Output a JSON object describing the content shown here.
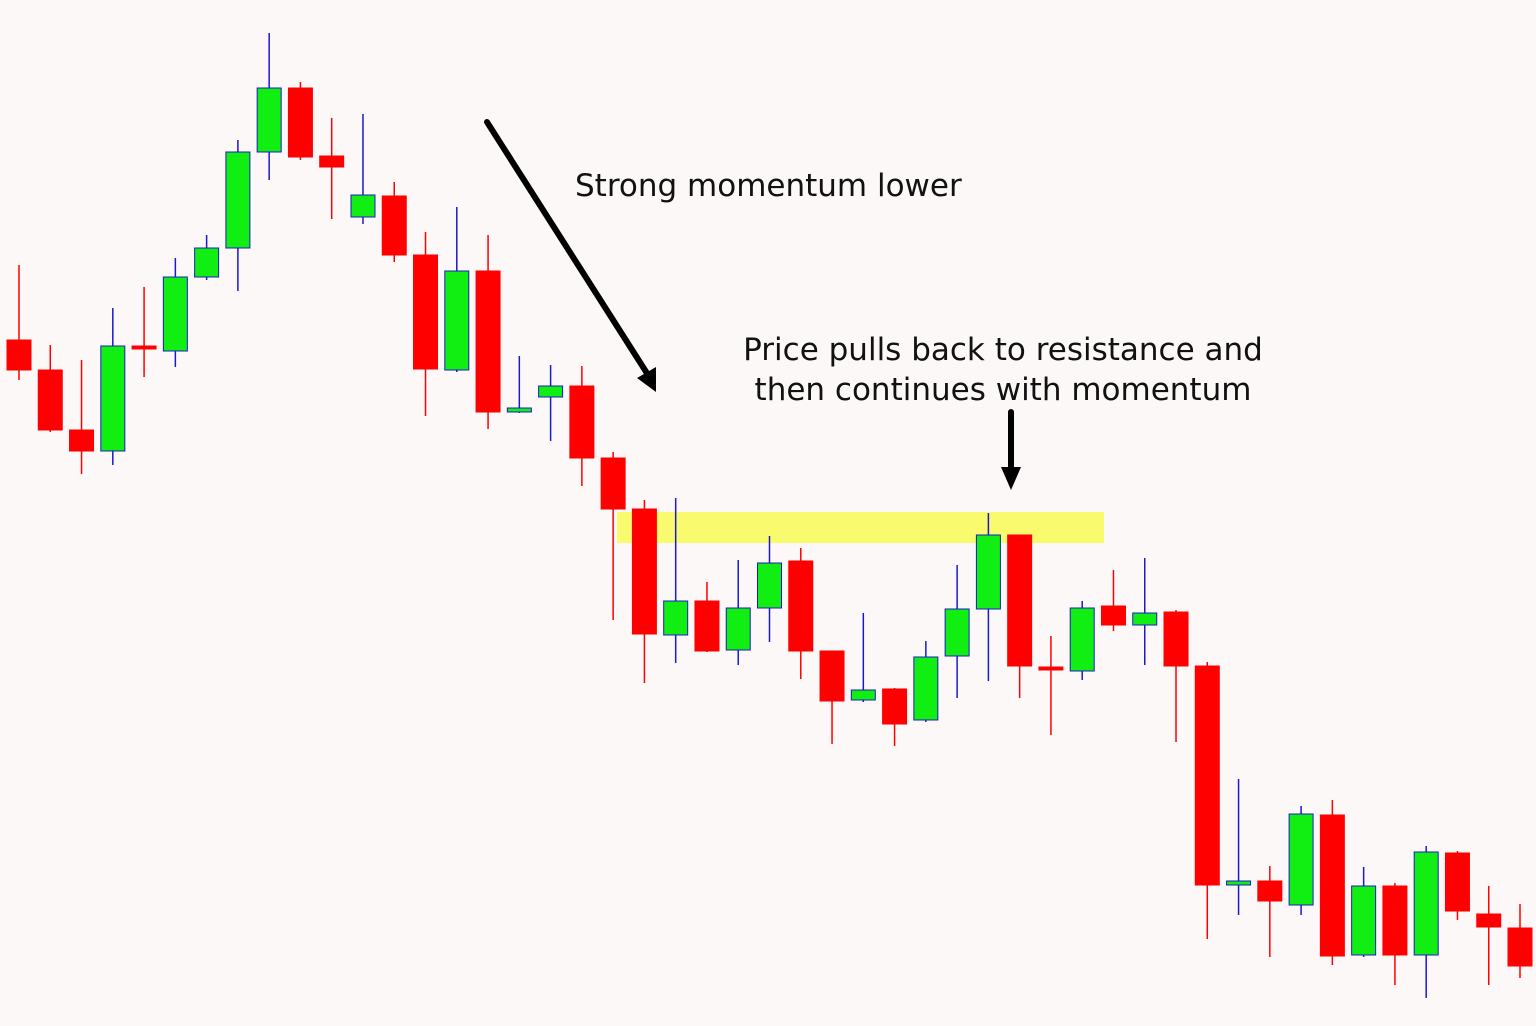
{
  "chart_data": {
    "type": "candlestick",
    "ylim": [
      0,
      1026
    ],
    "up_color": "#11ee11",
    "up_edge_color": "#1a1acc",
    "down_color": "#ff0000",
    "zone": {
      "low": 483,
      "high": 514,
      "color": "#fafa6e"
    },
    "annotations": [
      "Strong momentum lower",
      "Price pulls back to resistance and",
      "then continues with momentum"
    ],
    "open": [
      686,
      656,
      596,
      575,
      680,
      675,
      749,
      778,
      874,
      938,
      870,
      809,
      830,
      771,
      656,
      755,
      614,
      629,
      640,
      568,
      517,
      391,
      425,
      376,
      418,
      465,
      375,
      326,
      337,
      306,
      370,
      417,
      491,
      359,
      355,
      420,
      401,
      414,
      360,
      141,
      145,
      121,
      211,
      71,
      140,
      71,
      173,
      112,
      98
    ],
    "high": [
      761,
      681,
      666,
      718,
      739,
      768,
      791,
      886,
      993,
      944,
      908,
      912,
      844,
      794,
      819,
      791,
      670,
      661,
      660,
      574,
      526,
      528,
      444,
      466,
      490,
      478,
      375,
      413,
      338,
      385,
      461,
      513,
      491,
      390,
      425,
      456,
      468,
      416,
      364,
      247,
      160,
      220,
      226,
      159,
      143,
      180,
      175,
      140,
      122
    ],
    "low": [
      646,
      594,
      552,
      561,
      649,
      659,
      746,
      735,
      846,
      866,
      807,
      802,
      764,
      610,
      654,
      597,
      613,
      585,
      540,
      406,
      343,
      363,
      374,
      361,
      384,
      347,
      282,
      324,
      280,
      304,
      328,
      345,
      328,
      291,
      346,
      395,
      361,
      284,
      87,
      111,
      69,
      111,
      61,
      69,
      41,
      28,
      106,
      41,
      48
    ],
    "close": [
      656,
      596,
      575,
      680,
      677,
      749,
      778,
      874,
      938,
      869,
      859,
      831,
      771,
      657,
      755,
      614,
      618,
      640,
      568,
      517,
      392,
      425,
      375,
      418,
      463,
      375,
      325,
      336,
      302,
      369,
      417,
      491,
      360,
      356,
      418,
      401,
      413,
      360,
      141,
      145,
      125,
      212,
      70,
      140,
      71,
      174,
      115,
      99,
      60
    ]
  }
}
